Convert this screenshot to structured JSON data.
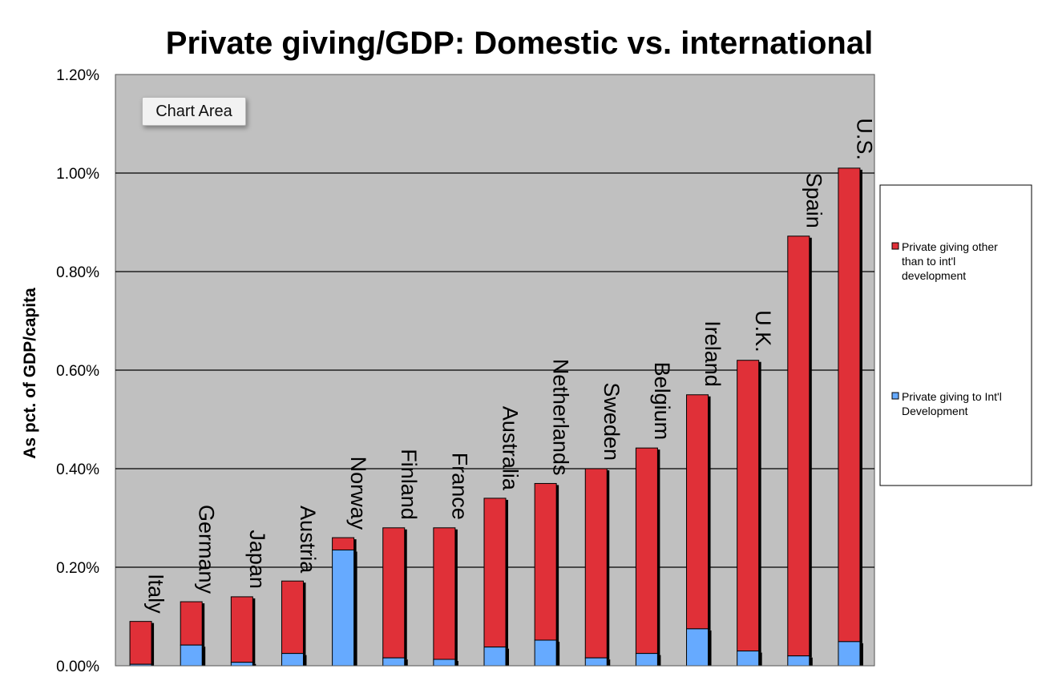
{
  "chart_data": {
    "type": "bar",
    "stacked": true,
    "title": "Private giving/GDP: Domestic vs. international",
    "ylabel": "As pct. of GDP/capita",
    "ylim": [
      0,
      1.2
    ],
    "yticks": [
      "0.00%",
      "0.20%",
      "0.40%",
      "0.60%",
      "0.80%",
      "1.00%",
      "1.20%"
    ],
    "grid": true,
    "legend_position": "right",
    "categories": [
      "Italy",
      "Germany",
      "Japan",
      "Austria",
      "Norway",
      "Finland",
      "France",
      "Australia",
      "Netherlands",
      "Sweden",
      "Belgium",
      "Ireland",
      "U.K.",
      "Spain",
      "U.S."
    ],
    "series": [
      {
        "name": "Private giving to Int'l Development",
        "color": "#66aaff",
        "values": [
          0.003,
          0.042,
          0.007,
          0.025,
          0.235,
          0.016,
          0.013,
          0.038,
          0.052,
          0.016,
          0.025,
          0.075,
          0.03,
          0.02,
          0.049
        ]
      },
      {
        "name": "Private giving other than to int'l development",
        "color": "#e03038",
        "values": [
          0.087,
          0.088,
          0.133,
          0.147,
          0.025,
          0.264,
          0.267,
          0.302,
          0.318,
          0.384,
          0.417,
          0.475,
          0.59,
          0.852,
          0.961
        ]
      }
    ]
  },
  "tooltip": {
    "label": "Chart Area"
  },
  "colors": {
    "plot_background": "#c0c0c0",
    "gridline": "#000000"
  }
}
